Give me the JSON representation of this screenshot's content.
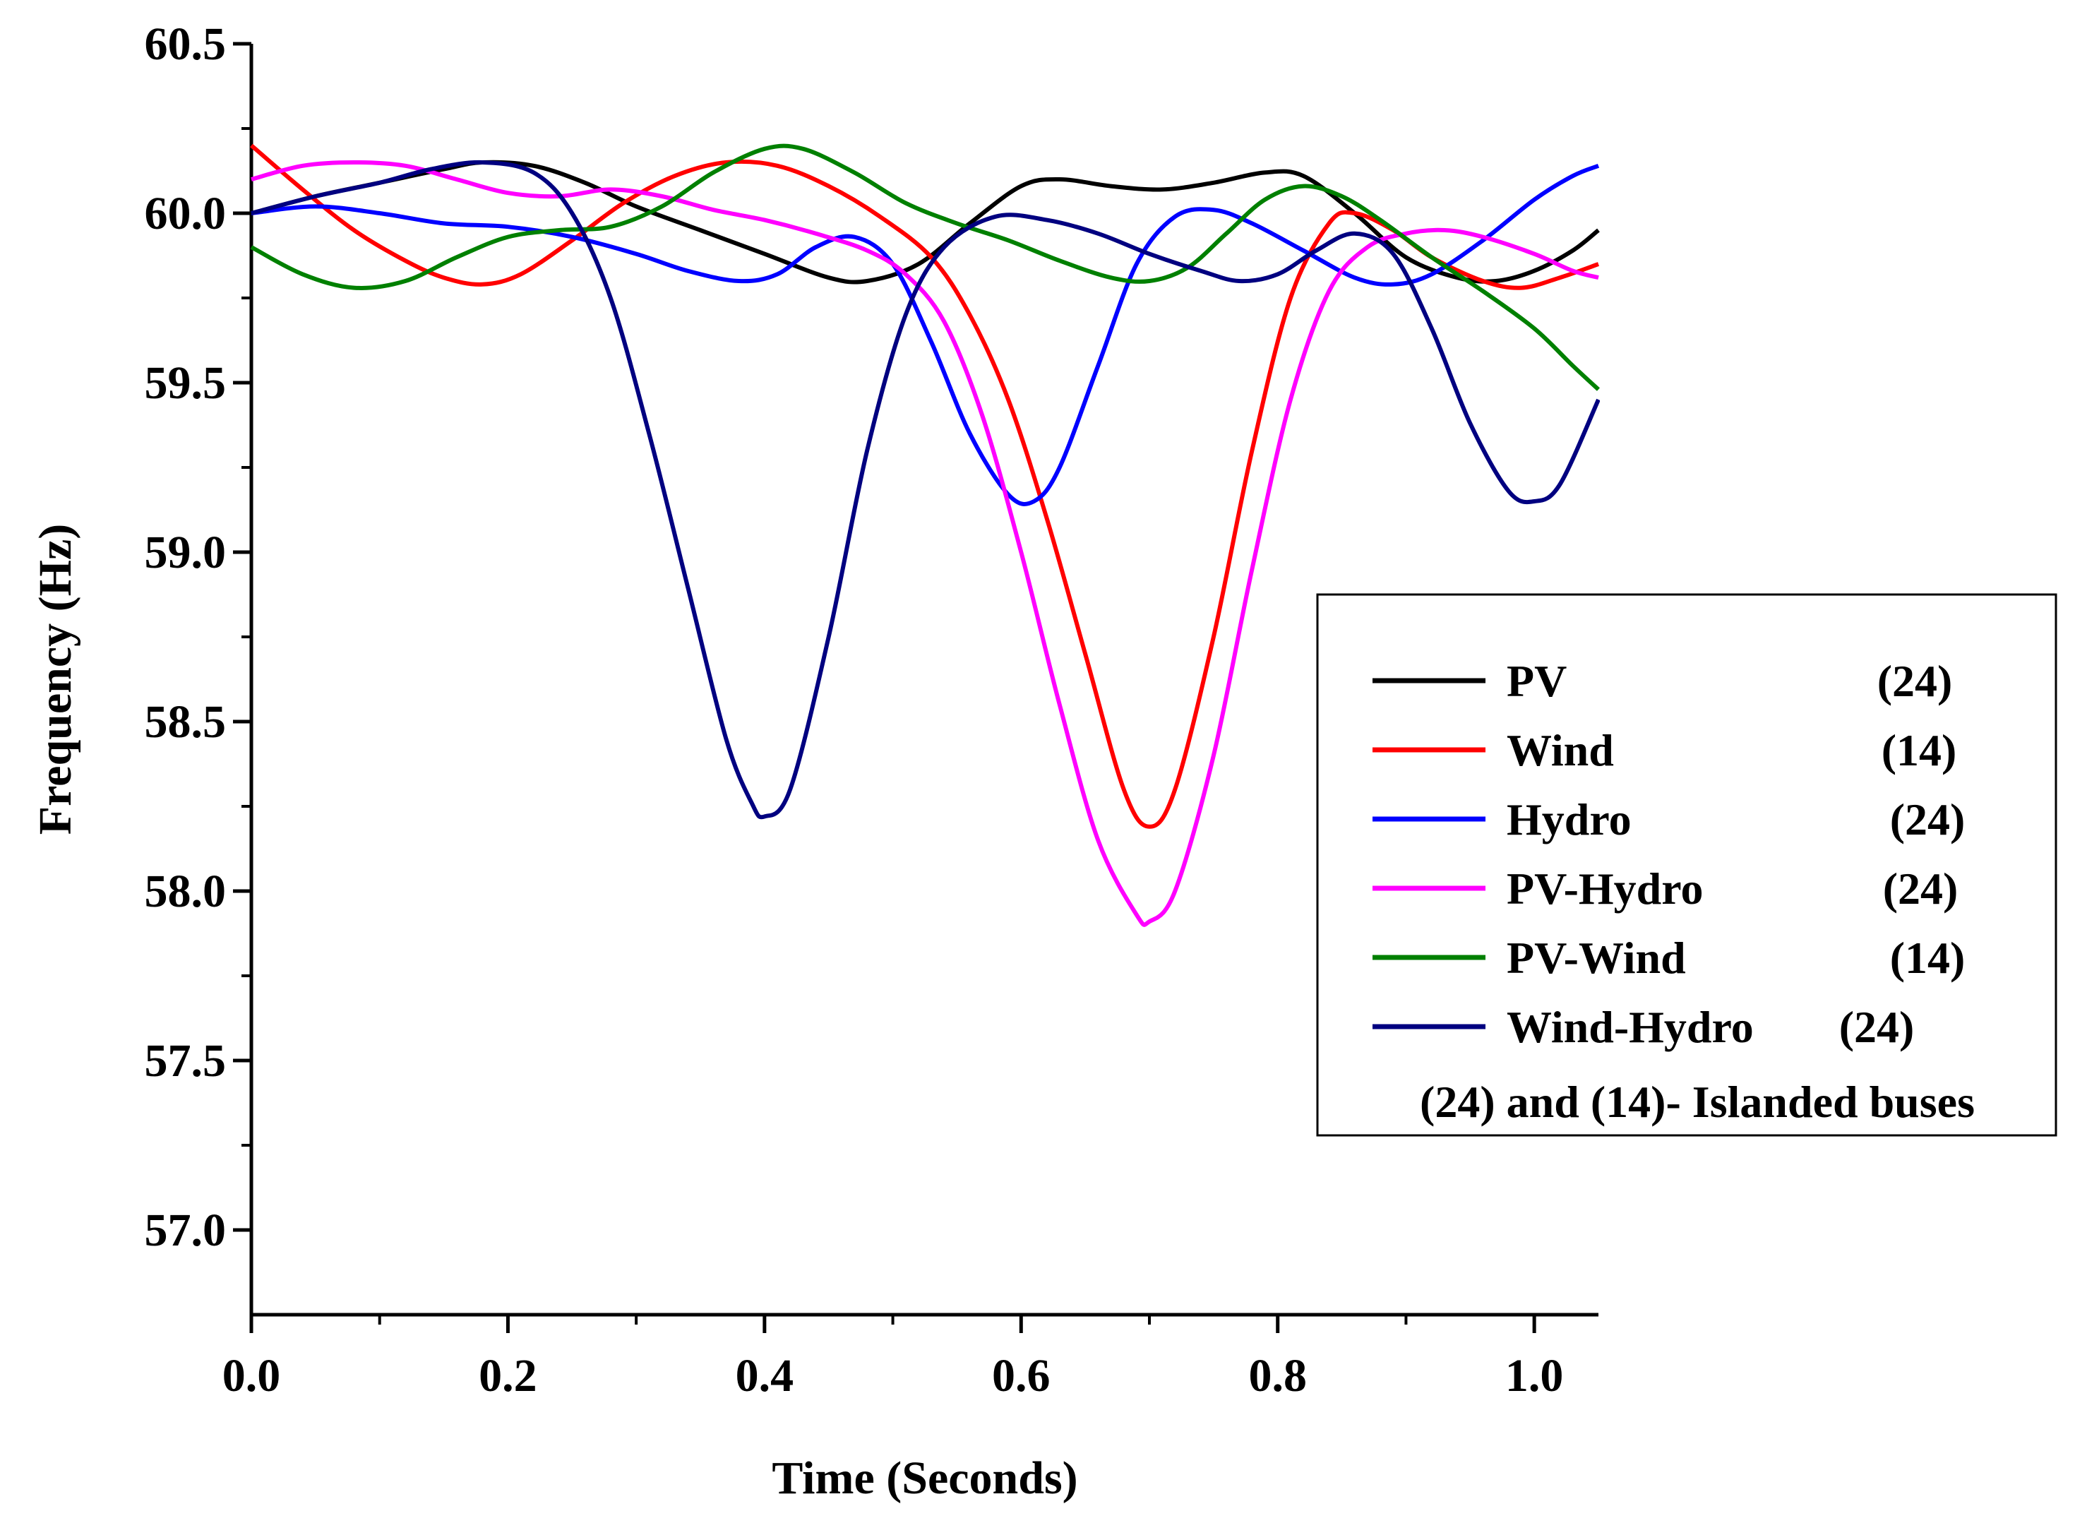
{
  "chart_data": {
    "type": "line",
    "title": "",
    "xlabel": "Time (Seconds)",
    "ylabel": "Frequency (Hz)",
    "xlim": [
      0,
      1.05
    ],
    "ylim": [
      56.75,
      60.5
    ],
    "x_ticks": [
      "0.0",
      "0.2",
      "0.4",
      "0.6",
      "0.8",
      "1.0"
    ],
    "y_ticks": [
      "57.0",
      "57.5",
      "58.0",
      "58.5",
      "59.0",
      "59.5",
      "60.0",
      "60.5"
    ],
    "grid": false,
    "legend_position": "right",
    "legend_note": "(24) and (14)- Islanded buses",
    "series": [
      {
        "name": "PV",
        "bus": "(24)",
        "color": "#000000",
        "points": [
          [
            0,
            60.0
          ],
          [
            0.05,
            60.05
          ],
          [
            0.1,
            60.09
          ],
          [
            0.15,
            60.13
          ],
          [
            0.18,
            60.15
          ],
          [
            0.22,
            60.14
          ],
          [
            0.26,
            60.09
          ],
          [
            0.3,
            60.02
          ],
          [
            0.35,
            59.95
          ],
          [
            0.4,
            59.88
          ],
          [
            0.45,
            59.81
          ],
          [
            0.48,
            59.8
          ],
          [
            0.52,
            59.85
          ],
          [
            0.56,
            59.97
          ],
          [
            0.6,
            60.08
          ],
          [
            0.63,
            60.1
          ],
          [
            0.67,
            60.08
          ],
          [
            0.71,
            60.07
          ],
          [
            0.75,
            60.09
          ],
          [
            0.79,
            60.12
          ],
          [
            0.82,
            60.11
          ],
          [
            0.86,
            60.0
          ],
          [
            0.9,
            59.87
          ],
          [
            0.94,
            59.81
          ],
          [
            0.97,
            59.8
          ],
          [
            1.0,
            59.83
          ],
          [
            1.03,
            59.89
          ],
          [
            1.05,
            59.95
          ]
        ]
      },
      {
        "name": "Wind",
        "bus": "(14)",
        "color": "#ff0000",
        "points": [
          [
            0,
            60.2
          ],
          [
            0.04,
            60.07
          ],
          [
            0.08,
            59.95
          ],
          [
            0.12,
            59.86
          ],
          [
            0.15,
            59.81
          ],
          [
            0.18,
            59.79
          ],
          [
            0.21,
            59.82
          ],
          [
            0.25,
            59.92
          ],
          [
            0.29,
            60.03
          ],
          [
            0.33,
            60.11
          ],
          [
            0.37,
            60.15
          ],
          [
            0.41,
            60.14
          ],
          [
            0.45,
            60.08
          ],
          [
            0.49,
            59.99
          ],
          [
            0.53,
            59.87
          ],
          [
            0.56,
            59.7
          ],
          [
            0.59,
            59.45
          ],
          [
            0.62,
            59.1
          ],
          [
            0.65,
            58.7
          ],
          [
            0.68,
            58.3
          ],
          [
            0.7,
            58.19
          ],
          [
            0.72,
            58.3
          ],
          [
            0.75,
            58.75
          ],
          [
            0.78,
            59.3
          ],
          [
            0.81,
            59.75
          ],
          [
            0.84,
            59.97
          ],
          [
            0.86,
            60.0
          ],
          [
            0.89,
            59.95
          ],
          [
            0.92,
            59.87
          ],
          [
            0.96,
            59.8
          ],
          [
            0.99,
            59.78
          ],
          [
            1.02,
            59.81
          ],
          [
            1.05,
            59.85
          ]
        ]
      },
      {
        "name": "Hydro",
        "bus": "(24)",
        "color": "#0000ff",
        "points": [
          [
            0,
            60.0
          ],
          [
            0.05,
            60.02
          ],
          [
            0.1,
            60.0
          ],
          [
            0.15,
            59.97
          ],
          [
            0.2,
            59.96
          ],
          [
            0.25,
            59.93
          ],
          [
            0.3,
            59.88
          ],
          [
            0.34,
            59.83
          ],
          [
            0.38,
            59.8
          ],
          [
            0.41,
            59.82
          ],
          [
            0.44,
            59.9
          ],
          [
            0.47,
            59.93
          ],
          [
            0.5,
            59.85
          ],
          [
            0.53,
            59.62
          ],
          [
            0.56,
            59.35
          ],
          [
            0.59,
            59.17
          ],
          [
            0.61,
            59.15
          ],
          [
            0.63,
            59.25
          ],
          [
            0.66,
            59.55
          ],
          [
            0.69,
            59.85
          ],
          [
            0.72,
            59.99
          ],
          [
            0.75,
            60.01
          ],
          [
            0.78,
            59.97
          ],
          [
            0.82,
            59.89
          ],
          [
            0.86,
            59.81
          ],
          [
            0.89,
            59.79
          ],
          [
            0.92,
            59.82
          ],
          [
            0.96,
            59.92
          ],
          [
            1.0,
            60.04
          ],
          [
            1.03,
            60.11
          ],
          [
            1.05,
            60.14
          ]
        ]
      },
      {
        "name": "PV-Hydro",
        "bus": "(24)",
        "color": "#ff00ff",
        "points": [
          [
            0,
            60.1
          ],
          [
            0.04,
            60.14
          ],
          [
            0.08,
            60.15
          ],
          [
            0.12,
            60.14
          ],
          [
            0.16,
            60.1
          ],
          [
            0.2,
            60.06
          ],
          [
            0.24,
            60.05
          ],
          [
            0.28,
            60.07
          ],
          [
            0.32,
            60.05
          ],
          [
            0.36,
            60.01
          ],
          [
            0.4,
            59.98
          ],
          [
            0.44,
            59.94
          ],
          [
            0.48,
            59.89
          ],
          [
            0.51,
            59.82
          ],
          [
            0.54,
            59.68
          ],
          [
            0.57,
            59.4
          ],
          [
            0.6,
            59.0
          ],
          [
            0.63,
            58.55
          ],
          [
            0.66,
            58.15
          ],
          [
            0.69,
            57.93
          ],
          [
            0.7,
            57.91
          ],
          [
            0.72,
            58.0
          ],
          [
            0.75,
            58.4
          ],
          [
            0.78,
            58.95
          ],
          [
            0.81,
            59.45
          ],
          [
            0.84,
            59.77
          ],
          [
            0.87,
            59.9
          ],
          [
            0.9,
            59.94
          ],
          [
            0.93,
            59.95
          ],
          [
            0.96,
            59.93
          ],
          [
            1.0,
            59.88
          ],
          [
            1.03,
            59.83
          ],
          [
            1.05,
            59.81
          ]
        ]
      },
      {
        "name": "PV-Wind",
        "bus": "(14)",
        "color": "#008000",
        "points": [
          [
            0,
            59.9
          ],
          [
            0.04,
            59.82
          ],
          [
            0.08,
            59.78
          ],
          [
            0.12,
            59.8
          ],
          [
            0.16,
            59.87
          ],
          [
            0.2,
            59.93
          ],
          [
            0.24,
            59.95
          ],
          [
            0.28,
            59.96
          ],
          [
            0.32,
            60.02
          ],
          [
            0.36,
            60.12
          ],
          [
            0.4,
            60.19
          ],
          [
            0.43,
            60.19
          ],
          [
            0.47,
            60.12
          ],
          [
            0.51,
            60.03
          ],
          [
            0.55,
            59.97
          ],
          [
            0.59,
            59.92
          ],
          [
            0.63,
            59.86
          ],
          [
            0.67,
            59.81
          ],
          [
            0.7,
            59.8
          ],
          [
            0.73,
            59.84
          ],
          [
            0.76,
            59.94
          ],
          [
            0.79,
            60.04
          ],
          [
            0.82,
            60.08
          ],
          [
            0.85,
            60.05
          ],
          [
            0.88,
            59.98
          ],
          [
            0.92,
            59.87
          ],
          [
            0.96,
            59.77
          ],
          [
            1.0,
            59.66
          ],
          [
            1.03,
            59.55
          ],
          [
            1.05,
            59.48
          ]
        ]
      },
      {
        "name": "Wind-Hydro",
        "bus": "(24)",
        "color": "#000080",
        "points": [
          [
            0,
            60.0
          ],
          [
            0.05,
            60.05
          ],
          [
            0.1,
            60.09
          ],
          [
            0.14,
            60.13
          ],
          [
            0.18,
            60.15
          ],
          [
            0.22,
            60.12
          ],
          [
            0.25,
            60.0
          ],
          [
            0.28,
            59.75
          ],
          [
            0.31,
            59.35
          ],
          [
            0.34,
            58.9
          ],
          [
            0.37,
            58.45
          ],
          [
            0.39,
            58.26
          ],
          [
            0.4,
            58.22
          ],
          [
            0.42,
            58.3
          ],
          [
            0.45,
            58.75
          ],
          [
            0.48,
            59.3
          ],
          [
            0.51,
            59.7
          ],
          [
            0.54,
            59.9
          ],
          [
            0.58,
            59.99
          ],
          [
            0.62,
            59.98
          ],
          [
            0.66,
            59.94
          ],
          [
            0.7,
            59.88
          ],
          [
            0.74,
            59.83
          ],
          [
            0.77,
            59.8
          ],
          [
            0.8,
            59.82
          ],
          [
            0.83,
            59.89
          ],
          [
            0.86,
            59.94
          ],
          [
            0.89,
            59.88
          ],
          [
            0.92,
            59.66
          ],
          [
            0.95,
            59.38
          ],
          [
            0.98,
            59.18
          ],
          [
            1.0,
            59.15
          ],
          [
            1.02,
            59.2
          ],
          [
            1.05,
            59.45
          ]
        ]
      }
    ]
  }
}
